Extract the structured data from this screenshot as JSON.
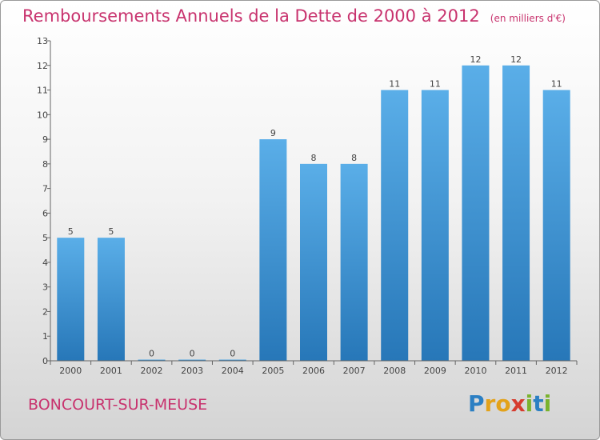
{
  "chart_data": {
    "type": "bar",
    "title": "Remboursements Annuels de la Dette de 2000 à 2012",
    "subtitle": "(en milliers d'€)",
    "categories": [
      "2000",
      "2001",
      "2002",
      "2003",
      "2004",
      "2005",
      "2006",
      "2007",
      "2008",
      "2009",
      "2010",
      "2011",
      "2012"
    ],
    "values": [
      5,
      5,
      0,
      0,
      0,
      9,
      8,
      8,
      11,
      11,
      12,
      12,
      11
    ],
    "ylim": [
      0,
      13
    ],
    "yticks": [
      0,
      1,
      2,
      3,
      4,
      5,
      6,
      7,
      8,
      9,
      10,
      11,
      12,
      13
    ],
    "grid": false,
    "bar_color_top": "#5aaee8",
    "bar_color_bottom": "#2777b8",
    "title_color": "#c8336e"
  },
  "footer": {
    "commune": "BONCOURT-SUR-MEUSE",
    "logo_letters": [
      "P",
      "r",
      "o",
      "x",
      "i",
      "t",
      "i"
    ],
    "logo_colors": [
      "#2b7fc3",
      "#e3a21a",
      "#e3a21a",
      "#d63c2e",
      "#7ab32e",
      "#2b7fc3",
      "#7ab32e"
    ]
  }
}
